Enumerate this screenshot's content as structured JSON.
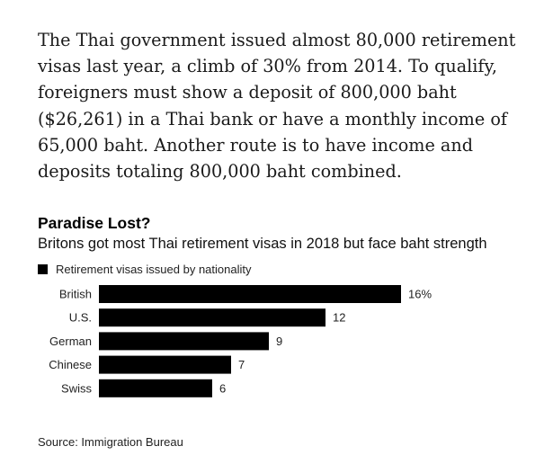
{
  "article": {
    "paragraph": "The Thai government issued almost 80,000 retirement visas last year, a climb of 30% from 2014. To qualify, foreigners must show a deposit of 800,000 baht ($26,261) in a Thai bank or have a monthly income of 65,000 baht. Another route is to have income and deposits totaling 800,000 baht combined."
  },
  "chart_data": {
    "type": "bar",
    "orientation": "horizontal",
    "title": "Paradise Lost?",
    "subtitle": "Britons got most Thai retirement visas in 2018 but face baht strength",
    "categories": [
      "British",
      "U.S.",
      "German",
      "Chinese",
      "Swiss"
    ],
    "series": [
      {
        "name": "Retirement visas issued by nationality",
        "values": [
          16,
          12,
          9,
          7,
          6
        ]
      }
    ],
    "value_labels": [
      "16%",
      "12",
      "9",
      "7",
      "6"
    ],
    "unit": "%",
    "legend_position": "top-left",
    "grid": false,
    "source": "Source: Immigration Bureau",
    "colors": {
      "bar": "#000000"
    }
  }
}
